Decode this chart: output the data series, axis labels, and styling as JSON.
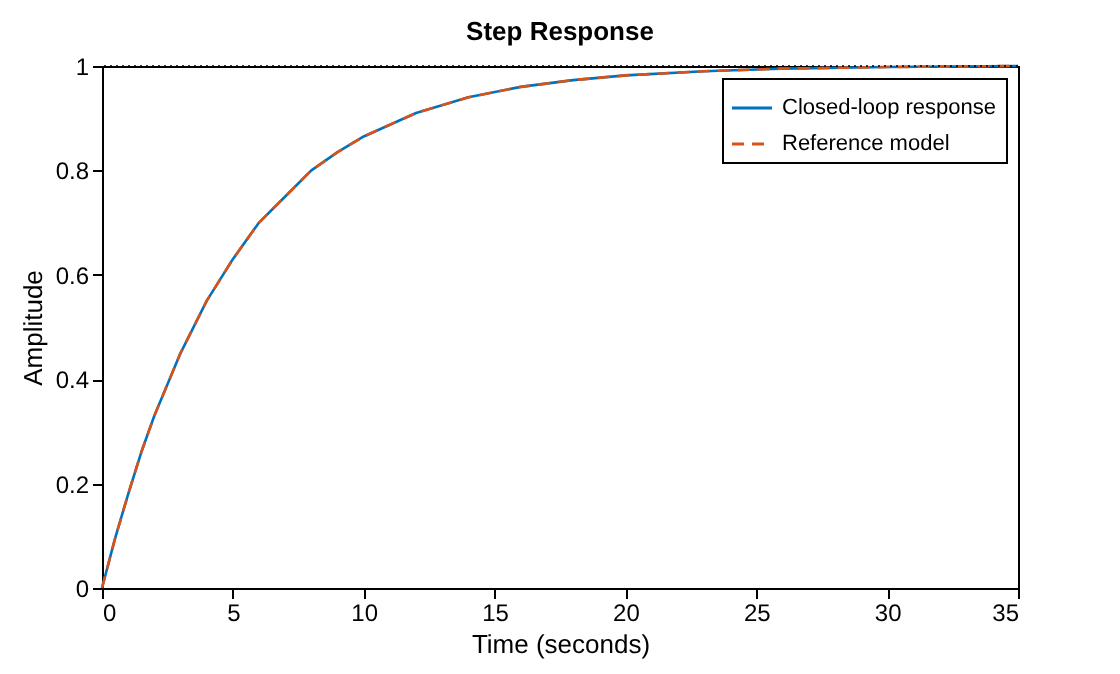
{
  "chart_data": {
    "type": "line",
    "title": "Step Response",
    "xlabel": "Time (seconds)",
    "ylabel": "Amplitude",
    "x": [
      0,
      0.5,
      1,
      1.5,
      2,
      3,
      4,
      5,
      6,
      7,
      8,
      9,
      10,
      12,
      14,
      16,
      18,
      20,
      23,
      26,
      30,
      35
    ],
    "series": [
      {
        "name": "Closed-loop response",
        "color": "#0072bd",
        "line_style": "solid",
        "values": [
          0,
          0.095,
          0.18,
          0.26,
          0.33,
          0.45,
          0.55,
          0.63,
          0.7,
          0.75,
          0.8,
          0.835,
          0.865,
          0.91,
          0.94,
          0.96,
          0.973,
          0.982,
          0.99,
          0.995,
          0.998,
          1.0
        ]
      },
      {
        "name": "Reference model",
        "color": "#d95319",
        "line_style": "dashed",
        "values": [
          0,
          0.095,
          0.18,
          0.26,
          0.33,
          0.45,
          0.55,
          0.63,
          0.7,
          0.75,
          0.8,
          0.835,
          0.865,
          0.91,
          0.94,
          0.96,
          0.973,
          0.982,
          0.99,
          0.995,
          0.998,
          1.0
        ]
      }
    ],
    "xlim": [
      0,
      35
    ],
    "xticks": [
      0,
      5,
      10,
      15,
      20,
      25,
      30,
      35
    ],
    "ylim": [
      0,
      1
    ],
    "yticks": [
      0,
      0.2,
      0.4,
      0.6,
      0.8,
      1
    ],
    "ref_lines": [
      {
        "axis": "y",
        "value": 1,
        "color": "#000000",
        "line_style": "dotted"
      }
    ],
    "grid": false,
    "legend": "top right",
    "marker": "none"
  }
}
